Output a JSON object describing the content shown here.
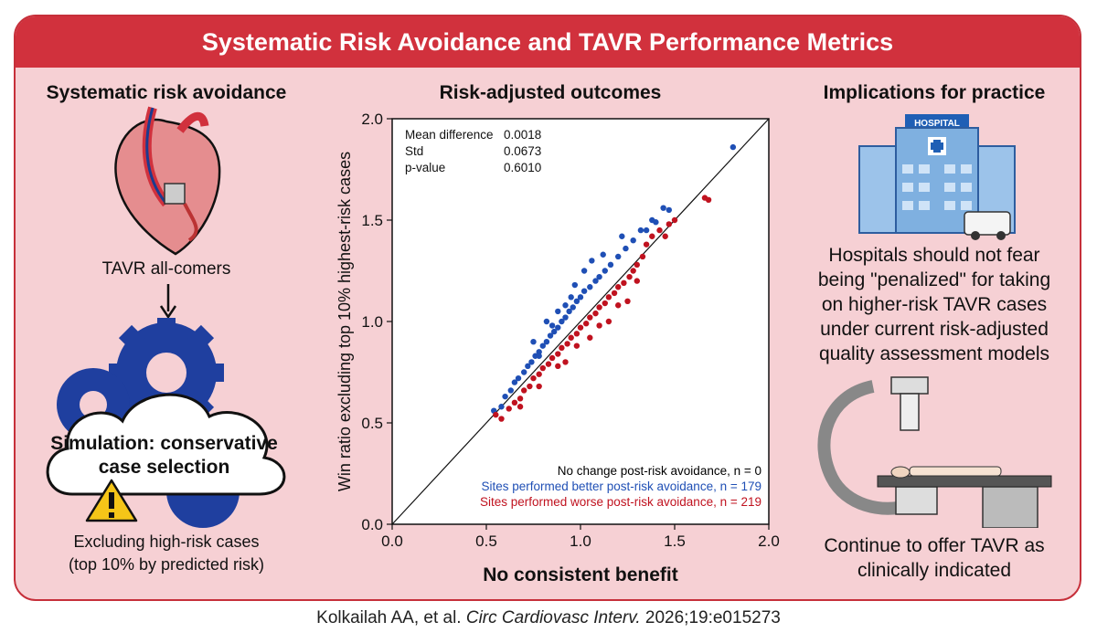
{
  "banner": {
    "title": "Systematic Risk Avoidance and TAVR Performance Metrics"
  },
  "left": {
    "title": "Systematic risk avoidance",
    "heart_caption": "TAVR all-comers",
    "cloud_text_line1": "Simulation: conservative",
    "cloud_text_line2": "case selection",
    "excluding_line1": "Excluding high-risk cases",
    "excluding_line2": "(top 10% by predicted risk)"
  },
  "center": {
    "title": "Risk-adjusted outcomes",
    "conclusion": "No consistent benefit"
  },
  "right": {
    "title": "Implications for practice",
    "hospital_sign": "HOSPITAL",
    "message_lines": [
      "Hospitals should not fear",
      "being \"penalized\" for taking",
      "on higher-risk TAVR cases",
      "under current risk-adjusted",
      "quality assessment models"
    ],
    "bottom_line1": "Continue to offer TAVR as",
    "bottom_line2": "clinically indicated"
  },
  "citation": {
    "authors": "Kolkailah AA, et al.",
    "journal": "Circ Cardiovasc Interv.",
    "details": "2026;19:e015273"
  },
  "chart_data": {
    "type": "scatter",
    "xlabel": "",
    "ylabel": "Win ratio excluding top 10% highest-risk cases",
    "xlim": [
      0,
      2.0
    ],
    "ylim": [
      0,
      2.0
    ],
    "xticks": [
      "0.0",
      "0.5",
      "1.0",
      "1.5",
      "2.0"
    ],
    "yticks": [
      "0.0",
      "0.5",
      "1.0",
      "1.5",
      "2.0"
    ],
    "identity_line": true,
    "stats": [
      {
        "label": "Mean difference",
        "value": "0.0018"
      },
      {
        "label": "Std",
        "value": "0.0673"
      },
      {
        "label": "p-value",
        "value": "0.6010"
      }
    ],
    "legend": [
      {
        "text": "No change post-risk avoidance, n = 0",
        "color": "#000000"
      },
      {
        "text": "Sites performed better post-risk avoidance, n = 179",
        "color": "#1f4fb5"
      },
      {
        "text": "Sites performed worse post-risk avoidance, n = 219",
        "color": "#c0121f"
      }
    ],
    "series": [
      {
        "name": "Sites performed better post-risk avoidance, n = 179",
        "color": "#1f4fb5",
        "points": [
          [
            0.54,
            0.56
          ],
          [
            0.58,
            0.58
          ],
          [
            0.6,
            0.63
          ],
          [
            0.63,
            0.66
          ],
          [
            0.65,
            0.7
          ],
          [
            0.67,
            0.72
          ],
          [
            0.7,
            0.75
          ],
          [
            0.72,
            0.78
          ],
          [
            0.74,
            0.8
          ],
          [
            0.76,
            0.83
          ],
          [
            0.78,
            0.85
          ],
          [
            0.8,
            0.88
          ],
          [
            0.82,
            0.9
          ],
          [
            0.84,
            0.93
          ],
          [
            0.86,
            0.95
          ],
          [
            0.88,
            0.97
          ],
          [
            0.9,
            1.0
          ],
          [
            0.92,
            1.02
          ],
          [
            0.94,
            1.05
          ],
          [
            0.96,
            1.07
          ],
          [
            0.98,
            1.1
          ],
          [
            1.0,
            1.12
          ],
          [
            1.02,
            1.15
          ],
          [
            1.05,
            1.17
          ],
          [
            1.08,
            1.2
          ],
          [
            1.1,
            1.22
          ],
          [
            1.13,
            1.25
          ],
          [
            1.16,
            1.28
          ],
          [
            1.2,
            1.32
          ],
          [
            1.24,
            1.36
          ],
          [
            1.28,
            1.4
          ],
          [
            1.32,
            1.45
          ],
          [
            1.38,
            1.5
          ],
          [
            1.44,
            1.56
          ],
          [
            1.47,
            1.55
          ],
          [
            1.81,
            1.86
          ],
          [
            0.78,
            0.83
          ],
          [
            0.85,
            0.98
          ],
          [
            0.92,
            1.08
          ],
          [
            0.97,
            1.18
          ],
          [
            1.02,
            1.25
          ],
          [
            0.88,
            1.05
          ],
          [
            1.06,
            1.3
          ],
          [
            0.75,
            0.9
          ],
          [
            0.82,
            1.0
          ],
          [
            0.95,
            1.12
          ],
          [
            1.12,
            1.33
          ],
          [
            1.22,
            1.42
          ],
          [
            1.35,
            1.45
          ],
          [
            1.4,
            1.49
          ]
        ]
      },
      {
        "name": "Sites performed worse post-risk avoidance, n = 219",
        "color": "#c0121f",
        "points": [
          [
            0.55,
            0.54
          ],
          [
            0.58,
            0.52
          ],
          [
            0.62,
            0.57
          ],
          [
            0.65,
            0.6
          ],
          [
            0.68,
            0.62
          ],
          [
            0.7,
            0.66
          ],
          [
            0.73,
            0.68
          ],
          [
            0.75,
            0.72
          ],
          [
            0.78,
            0.74
          ],
          [
            0.8,
            0.77
          ],
          [
            0.83,
            0.79
          ],
          [
            0.85,
            0.82
          ],
          [
            0.88,
            0.84
          ],
          [
            0.9,
            0.87
          ],
          [
            0.93,
            0.89
          ],
          [
            0.95,
            0.92
          ],
          [
            0.98,
            0.94
          ],
          [
            1.0,
            0.97
          ],
          [
            1.03,
            0.99
          ],
          [
            1.05,
            1.02
          ],
          [
            1.08,
            1.04
          ],
          [
            1.1,
            1.07
          ],
          [
            1.13,
            1.09
          ],
          [
            1.15,
            1.12
          ],
          [
            1.18,
            1.14
          ],
          [
            1.2,
            1.17
          ],
          [
            1.23,
            1.19
          ],
          [
            1.26,
            1.22
          ],
          [
            1.28,
            1.25
          ],
          [
            1.3,
            1.28
          ],
          [
            1.33,
            1.32
          ],
          [
            1.35,
            1.38
          ],
          [
            1.38,
            1.42
          ],
          [
            1.42,
            1.45
          ],
          [
            1.47,
            1.48
          ],
          [
            1.66,
            1.61
          ],
          [
            1.68,
            1.6
          ],
          [
            1.45,
            1.42
          ],
          [
            1.5,
            1.5
          ],
          [
            0.78,
            0.68
          ],
          [
            0.92,
            0.8
          ],
          [
            1.05,
            0.92
          ],
          [
            1.15,
            1.0
          ],
          [
            1.25,
            1.1
          ],
          [
            0.68,
            0.58
          ],
          [
            0.98,
            0.88
          ],
          [
            1.2,
            1.08
          ],
          [
            1.3,
            1.2
          ],
          [
            0.88,
            0.78
          ],
          [
            1.1,
            0.98
          ]
        ]
      }
    ]
  }
}
